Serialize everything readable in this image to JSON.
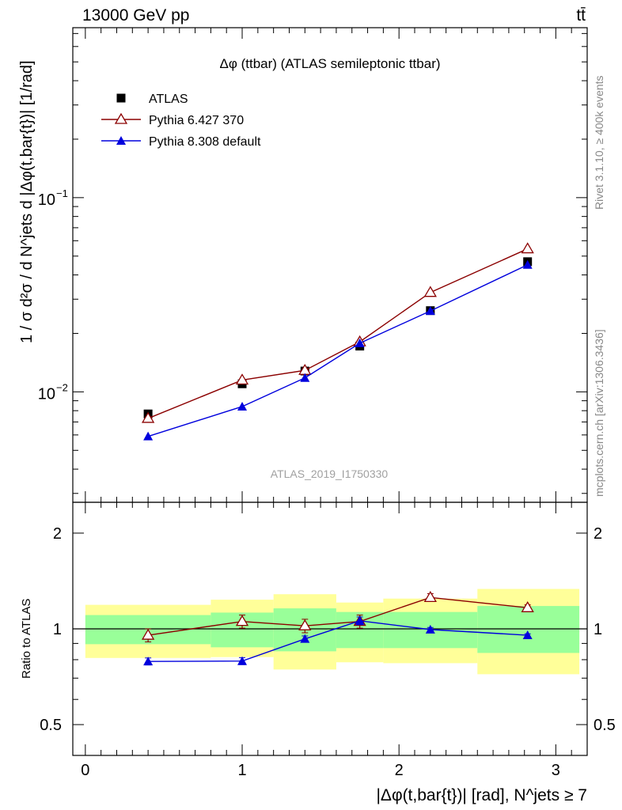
{
  "header": {
    "left": "13000 GeV pp",
    "right": "tt̄"
  },
  "side_labels": {
    "rivet": "Rivet 3.1.10, ≥ 400k events",
    "mcplots": "mcplots.cern.ch [arXiv:1306.3436]"
  },
  "chart_data": {
    "type": "line",
    "title": "Δφ (ttbar) (ATLAS semileptonic ttbar)",
    "analysis_label": "ATLAS_2019_I1750330",
    "ylabel": "1 / σ d²σ / d N^jets d |Δφ(t,bar{t})| [1/rad]",
    "xlabel": "|Δφ(t,bar{t})| [rad], N^jets ≥ 7",
    "yscale": "log",
    "xlim": [
      -0.08,
      3.2
    ],
    "ylim": [
      0.0027,
      0.75
    ],
    "x_ticks": [
      0,
      1,
      2,
      3
    ],
    "x_tick_labels": [
      "0",
      "1",
      "2",
      "3"
    ],
    "y_tick_labels": [
      {
        "value": 0.1,
        "label": "10",
        "exp": "−1"
      },
      {
        "value": 0.01,
        "label": "10",
        "exp": "−2"
      }
    ],
    "bin_edges": [
      0,
      0.8,
      1.2,
      1.6,
      1.9,
      2.5,
      3.15
    ],
    "x": [
      0.4,
      1.0,
      1.4,
      1.75,
      2.2,
      2.82
    ],
    "legend": {
      "position": "top-left",
      "entries": [
        "ATLAS",
        "Pythia 6.427 370",
        "Pythia 8.308 default"
      ]
    },
    "series": [
      {
        "name": "ATLAS",
        "color": "#000000",
        "marker": "square",
        "values": [
          0.0077,
          0.011,
          0.0128,
          0.0172,
          0.0262,
          0.0468
        ]
      },
      {
        "name": "Pythia 6.427 370",
        "color": "#8b0000",
        "marker": "open-triangle",
        "values": [
          0.0073,
          0.0115,
          0.0129,
          0.0181,
          0.0325,
          0.0545
        ],
        "errors": [
          0.0002,
          0.0006,
          0.0006,
          0.0009,
          0.0009,
          0.0011
        ]
      },
      {
        "name": "Pythia 8.308 default",
        "color": "#0000dd",
        "marker": "filled-triangle",
        "values": [
          0.0059,
          0.0084,
          0.0118,
          0.0178,
          0.0261,
          0.0451
        ]
      }
    ],
    "ratio": {
      "ylabel": "Ratio to ATLAS",
      "yscale": "log",
      "ylim": [
        0.4,
        2.5
      ],
      "y_ticks": [
        0.5,
        1,
        2
      ],
      "y_tick_labels": [
        "0.5",
        "1",
        "2"
      ],
      "band_inner": [
        [
          0.895,
          1.105
        ],
        [
          0.875,
          1.125
        ],
        [
          0.85,
          1.16
        ],
        [
          0.87,
          1.13
        ],
        [
          0.87,
          1.13
        ],
        [
          0.84,
          1.18
        ]
      ],
      "band_outer": [
        [
          0.81,
          1.19
        ],
        [
          0.815,
          1.235
        ],
        [
          0.745,
          1.285
        ],
        [
          0.785,
          1.21
        ],
        [
          0.78,
          1.245
        ],
        [
          0.72,
          1.335
        ]
      ],
      "series": [
        {
          "name": "Pythia 6.427 370",
          "color": "#8b0000",
          "marker": "open-triangle",
          "values": [
            0.955,
            1.055,
            1.022,
            1.055,
            1.255,
            1.165
          ],
          "errors": [
            0.045,
            0.05,
            0.05,
            0.05,
            0.035,
            0.025
          ]
        },
        {
          "name": "Pythia 8.308 default",
          "color": "#0000dd",
          "marker": "filled-triangle",
          "values": [
            0.79,
            0.792,
            0.93,
            1.06,
            0.995,
            0.955
          ],
          "errors": [
            0.02,
            0.02,
            0.02,
            0.03,
            0.015,
            0.01
          ]
        }
      ]
    }
  }
}
